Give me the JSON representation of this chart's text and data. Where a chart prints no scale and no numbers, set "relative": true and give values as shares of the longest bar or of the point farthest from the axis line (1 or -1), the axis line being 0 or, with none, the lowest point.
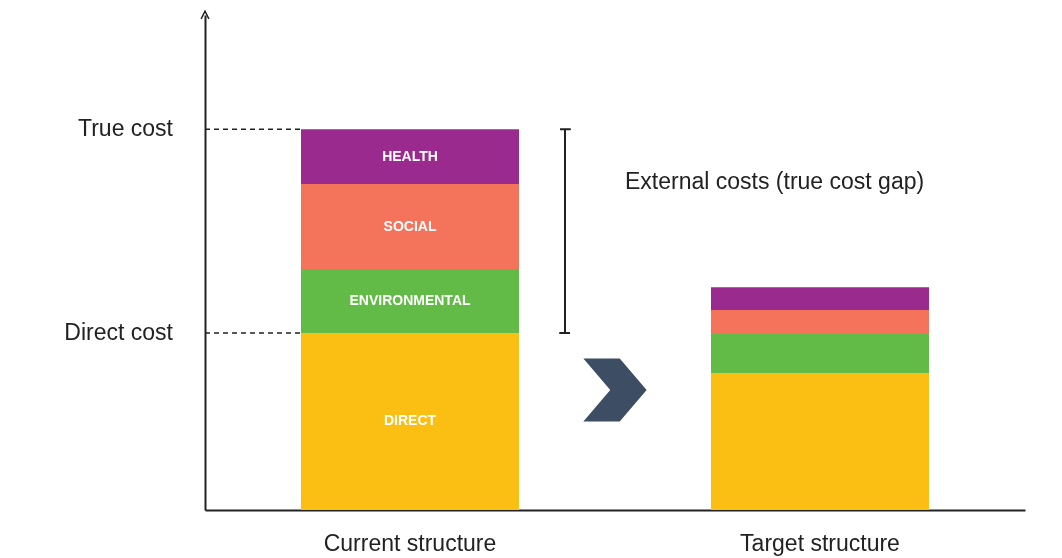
{
  "chart_data": {
    "type": "bar",
    "stacked": true,
    "relative": true,
    "categories": [
      "Current structure",
      "Target structure"
    ],
    "series": [
      {
        "name": "DIRECT",
        "color": "#fbbf13",
        "values": [
          0.465,
          0.36
        ]
      },
      {
        "name": "ENVIRONMENTAL",
        "color": "#63bb47",
        "values": [
          0.168,
          0.102
        ]
      },
      {
        "name": "SOCIAL",
        "color": "#f4735b",
        "values": [
          0.223,
          0.063
        ]
      },
      {
        "name": "HEALTH",
        "color": "#9b2a8f",
        "values": [
          0.144,
          0.06
        ]
      }
    ],
    "ref_lines": [
      {
        "axis": "y",
        "value": 1,
        "label": "True cost",
        "line_style": "dashed"
      },
      {
        "axis": "y",
        "value": 0.465,
        "label": "Direct cost",
        "line_style": "dashed"
      }
    ],
    "annotations": [
      "External costs (true cost gap)"
    ]
  }
}
